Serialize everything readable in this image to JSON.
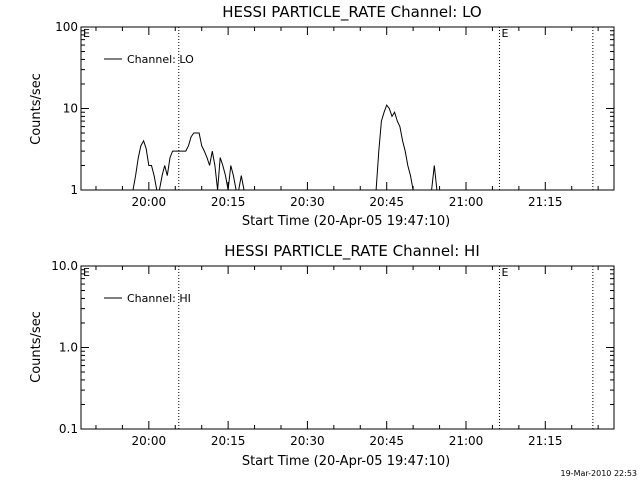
{
  "footer": {
    "timestamp": "19-Mar-2010 22:53"
  },
  "chart_data": [
    {
      "type": "line",
      "title": "HESSI PARTICLE_RATE Channel: LO",
      "xlabel": "Start Time (20-Apr-05 19:47:10)",
      "ylabel": "Counts/sec",
      "yscale": "log",
      "ylim": [
        1,
        100
      ],
      "yticks": [
        1,
        10,
        100
      ],
      "ytick_labels": [
        "1",
        "10",
        "100"
      ],
      "xlim": [
        "19:47:10",
        "21:28:00"
      ],
      "xticks": [
        "20:00",
        "20:15",
        "20:30",
        "20:45",
        "21:00",
        "21:15"
      ],
      "grid": false,
      "legend": {
        "position": "top-left",
        "entries": [
          "Channel: LO"
        ]
      },
      "markers": [
        {
          "time": "19:47:10",
          "label": "E"
        },
        {
          "time": "20:05:40",
          "label": ""
        },
        {
          "time": "21:06:20",
          "label": "E"
        },
        {
          "time": "21:24:00",
          "label": ""
        }
      ],
      "series": [
        {
          "name": "Channel: LO",
          "x": [
            "19:57:00",
            "19:57:30",
            "19:58:00",
            "19:58:30",
            "19:59:00",
            "19:59:30",
            "20:00:00",
            "20:00:30",
            "20:01:00",
            "20:01:30",
            "20:02:00",
            "20:02:30",
            "20:03:00",
            "20:03:30",
            "20:04:00",
            "20:04:30",
            "20:05:00",
            "20:05:30",
            "20:06:00",
            "20:06:30",
            "20:07:00",
            "20:07:30",
            "20:08:00",
            "20:08:30",
            "20:09:00",
            "20:09:30",
            "20:10:00",
            "20:10:30",
            "20:11:00",
            "20:11:30",
            "20:12:00",
            "20:12:30",
            "20:13:00",
            "20:13:30",
            "20:14:00",
            "20:14:30",
            "20:15:00",
            "20:15:30",
            "20:16:00",
            "20:16:30",
            "20:17:00",
            "20:17:30",
            "20:18:00"
          ],
          "y": [
            1,
            1.5,
            2.5,
            3.5,
            4,
            3.2,
            2,
            2,
            1.5,
            1,
            1,
            1.5,
            2,
            1.5,
            2.5,
            3,
            3,
            3,
            3,
            3,
            3,
            3.5,
            4.5,
            5,
            5,
            5,
            3.5,
            3,
            2.5,
            2,
            3,
            2,
            1,
            2.5,
            2,
            1.5,
            1,
            2,
            1.5,
            1,
            1,
            1.5,
            1
          ]
        },
        {
          "name": "Channel: LO",
          "x": [
            "20:43:00",
            "20:43:30",
            "20:44:00",
            "20:44:30",
            "20:45:00",
            "20:45:30",
            "20:46:00",
            "20:46:30",
            "20:47:00",
            "20:47:30",
            "20:48:00",
            "20:48:30",
            "20:49:00",
            "20:49:30",
            "20:50:00"
          ],
          "y": [
            1,
            3,
            7,
            9,
            11,
            10,
            8,
            9,
            7,
            6,
            4,
            3,
            2,
            1.5,
            1
          ]
        },
        {
          "name": "Channel: LO",
          "x": [
            "20:53:30",
            "20:54:00",
            "20:54:30"
          ],
          "y": [
            1,
            2,
            1
          ]
        }
      ]
    },
    {
      "type": "line",
      "title": "HESSI PARTICLE_RATE Channel: HI",
      "xlabel": "Start Time (20-Apr-05 19:47:10)",
      "ylabel": "Counts/sec",
      "yscale": "log",
      "ylim": [
        0.1,
        10
      ],
      "yticks": [
        0.1,
        1,
        10
      ],
      "ytick_labels": [
        "0.1",
        "1.0",
        "10.0"
      ],
      "xlim": [
        "19:47:10",
        "21:28:00"
      ],
      "xticks": [
        "20:00",
        "20:15",
        "20:30",
        "20:45",
        "21:00",
        "21:15"
      ],
      "grid": false,
      "legend": {
        "position": "top-left",
        "entries": [
          "Channel: HI"
        ]
      },
      "markers": [
        {
          "time": "19:47:10",
          "label": "E"
        },
        {
          "time": "20:05:40",
          "label": ""
        },
        {
          "time": "21:06:20",
          "label": "E"
        },
        {
          "time": "21:24:00",
          "label": ""
        }
      ],
      "series": [
        {
          "name": "Channel: HI",
          "x": [],
          "y": []
        }
      ]
    }
  ]
}
